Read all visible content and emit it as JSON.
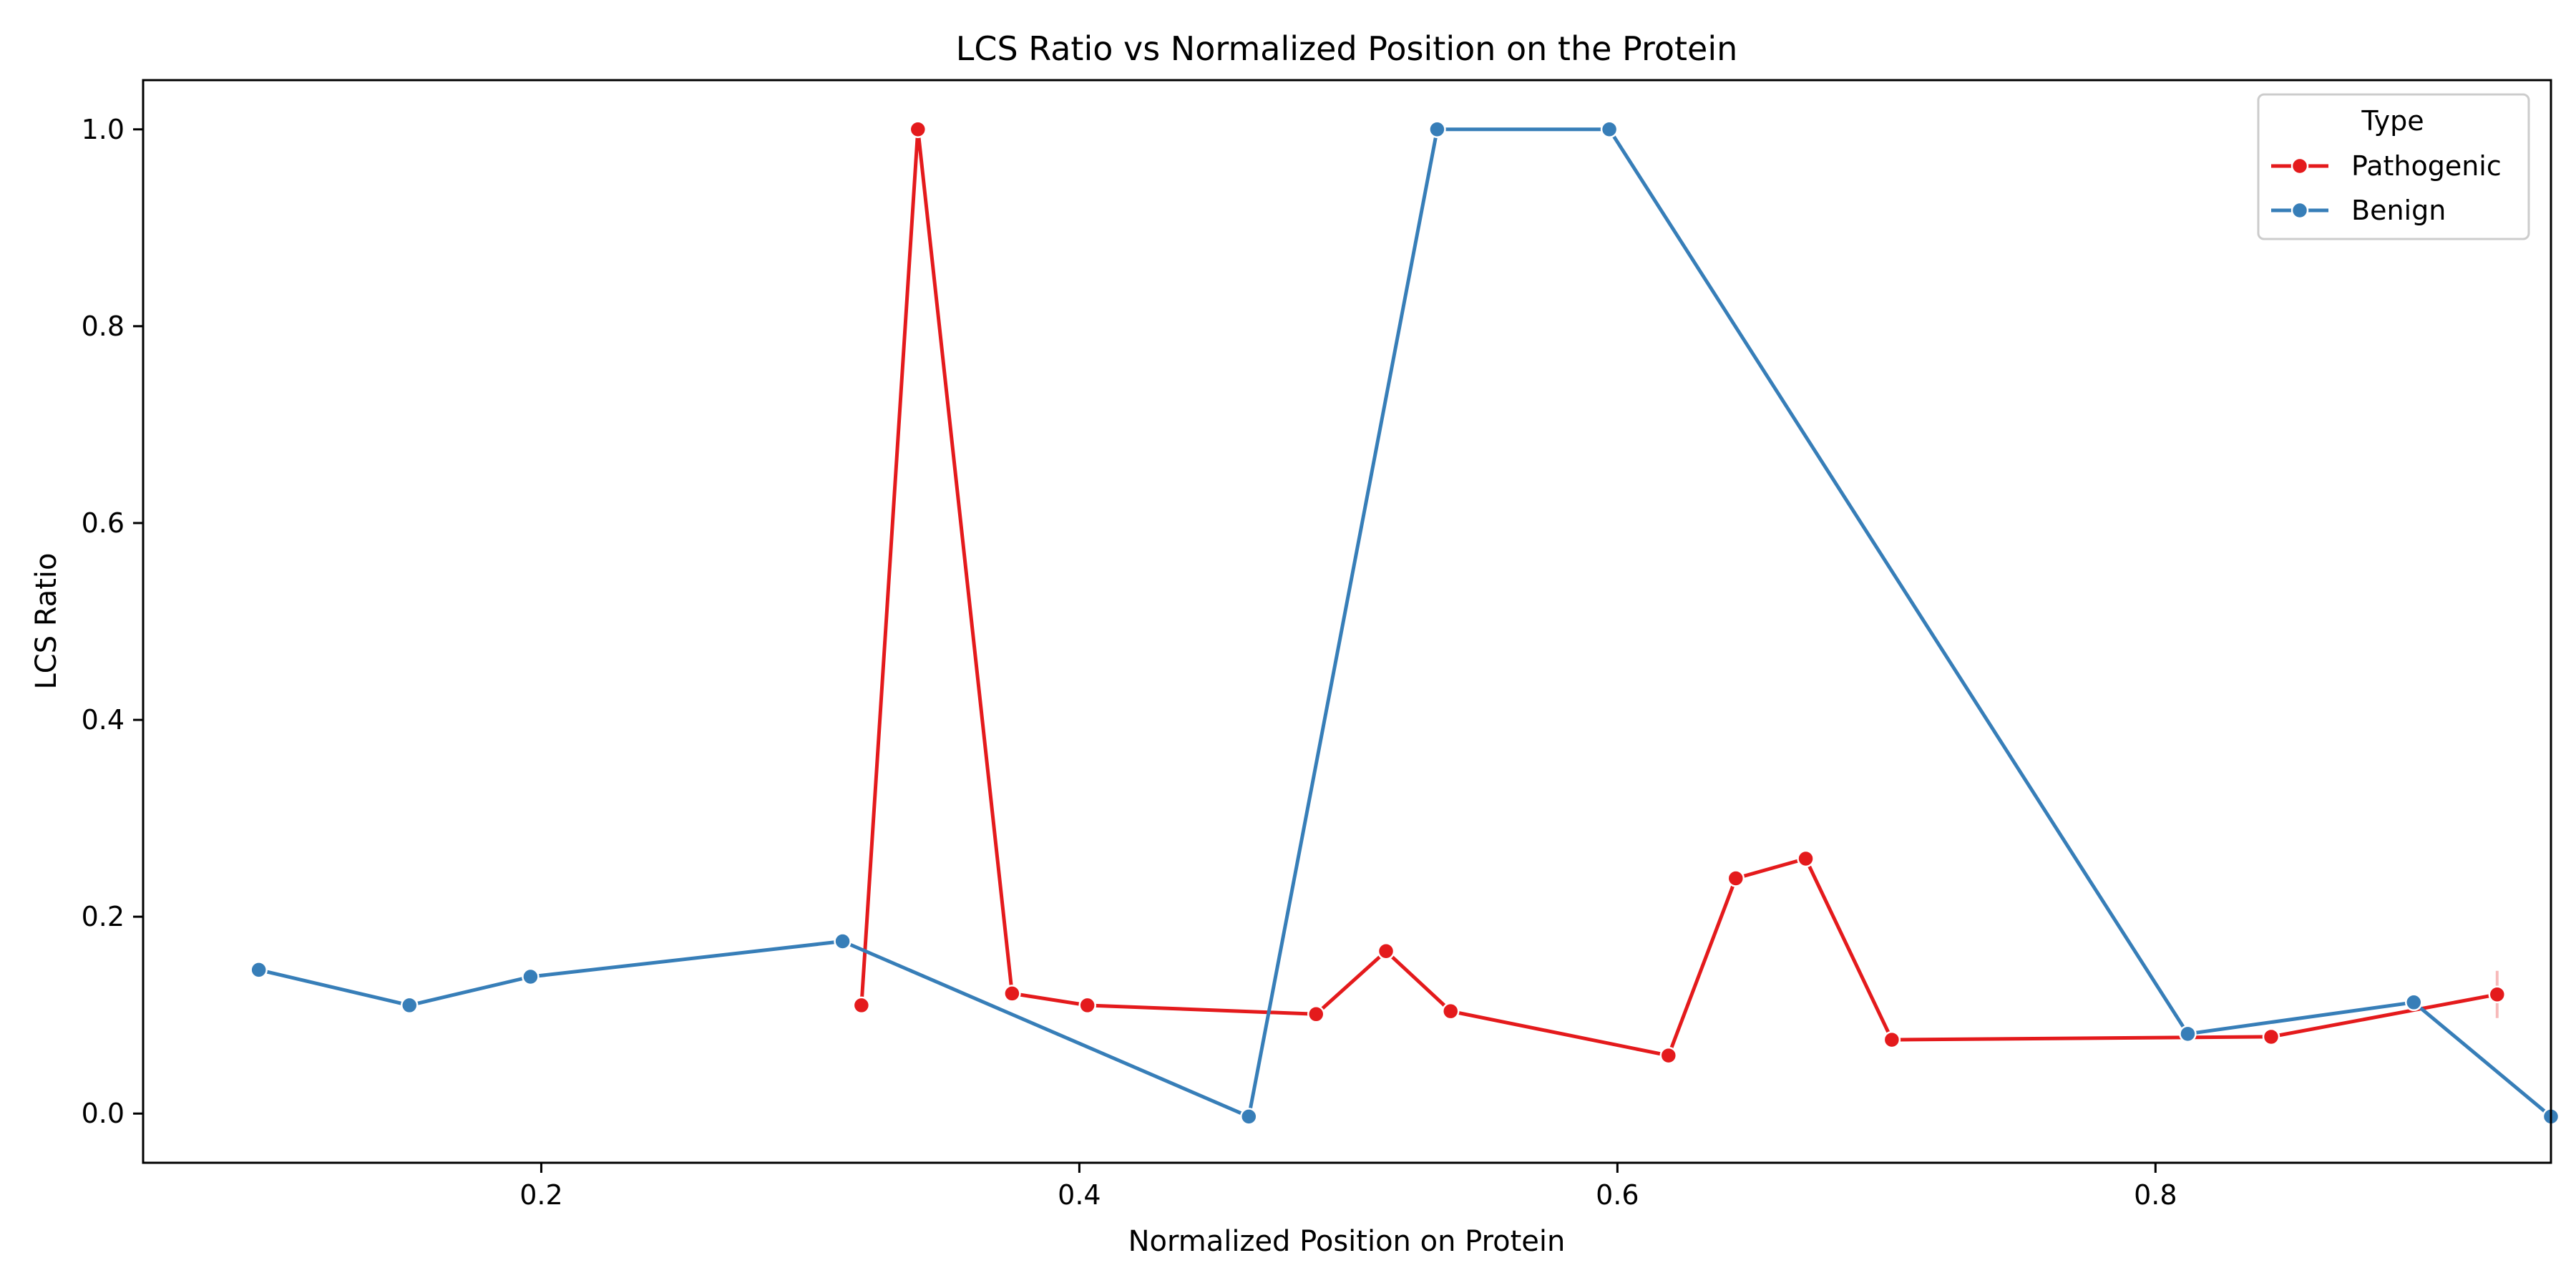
{
  "chart_data": {
    "type": "line",
    "title": "LCS Ratio vs Normalized Position on the Protein",
    "xlabel": "Normalized Position on Protein",
    "ylabel": "LCS Ratio",
    "xlim": [
      0.052,
      0.947
    ],
    "ylim": [
      -0.05,
      1.05
    ],
    "xticks": [
      0.2,
      0.4,
      0.6,
      0.8
    ],
    "yticks": [
      0.0,
      0.2,
      0.4,
      0.6,
      0.8,
      1.0
    ],
    "grid": false,
    "legend": {
      "title": "Type",
      "placement": "top-right"
    },
    "series": [
      {
        "name": "Pathogenic",
        "color": "#e41a1c",
        "x": [
          0.319,
          0.34,
          0.375,
          0.403,
          0.488,
          0.514,
          0.538,
          0.619,
          0.644,
          0.67,
          0.702,
          0.843,
          0.927
        ],
        "y": [
          0.11,
          1.0,
          0.122,
          0.11,
          0.101,
          0.165,
          0.104,
          0.059,
          0.239,
          0.259,
          0.075,
          0.078,
          0.121
        ],
        "error": {
          "x": 0.927,
          "low": 0.097,
          "high": 0.145
        }
      },
      {
        "name": "Benign",
        "color": "#377eb8",
        "x": [
          0.095,
          0.151,
          0.196,
          0.312,
          0.463,
          0.533,
          0.597,
          0.812,
          0.896,
          0.947
        ],
        "y": [
          0.146,
          0.11,
          0.139,
          0.175,
          -0.003,
          1.0,
          1.0,
          0.081,
          0.113,
          -0.003
        ]
      }
    ]
  }
}
